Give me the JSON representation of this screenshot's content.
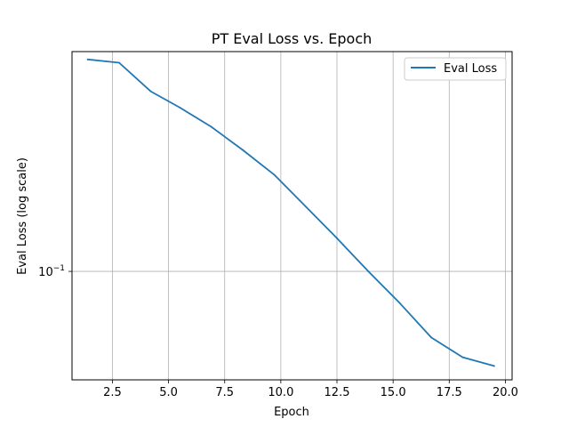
{
  "chart_data": {
    "type": "line",
    "title": "PT Eval Loss vs. Epoch",
    "xlabel": "Epoch",
    "ylabel": "Eval Loss (log scale)",
    "xlim": [
      0.7,
      20.3
    ],
    "ylim": [
      0.0375,
      0.73
    ],
    "yscale": "log",
    "grid": true,
    "legend_position": "top-right",
    "x_ticks": [
      2.5,
      5.0,
      7.5,
      10.0,
      12.5,
      15.0,
      17.5,
      20.0
    ],
    "x_tick_labels": [
      "2.5",
      "5.0",
      "7.5",
      "10.0",
      "12.5",
      "15.0",
      "17.5",
      "20.0"
    ],
    "y_ticks": [
      0.1
    ],
    "y_tick_base": "10",
    "y_tick_exponent": "−1",
    "series": [
      {
        "name": "Eval Loss",
        "color": "#1f77b4",
        "x": [
          1.4,
          2.8,
          4.2,
          5.5,
          6.9,
          8.3,
          9.7,
          11.1,
          12.5,
          13.9,
          15.3,
          16.7,
          18.1,
          19.5
        ],
        "y": [
          0.68,
          0.66,
          0.51,
          0.44,
          0.37,
          0.3,
          0.24,
          0.18,
          0.135,
          0.1,
          0.075,
          0.055,
          0.046,
          0.0425
        ]
      }
    ]
  }
}
